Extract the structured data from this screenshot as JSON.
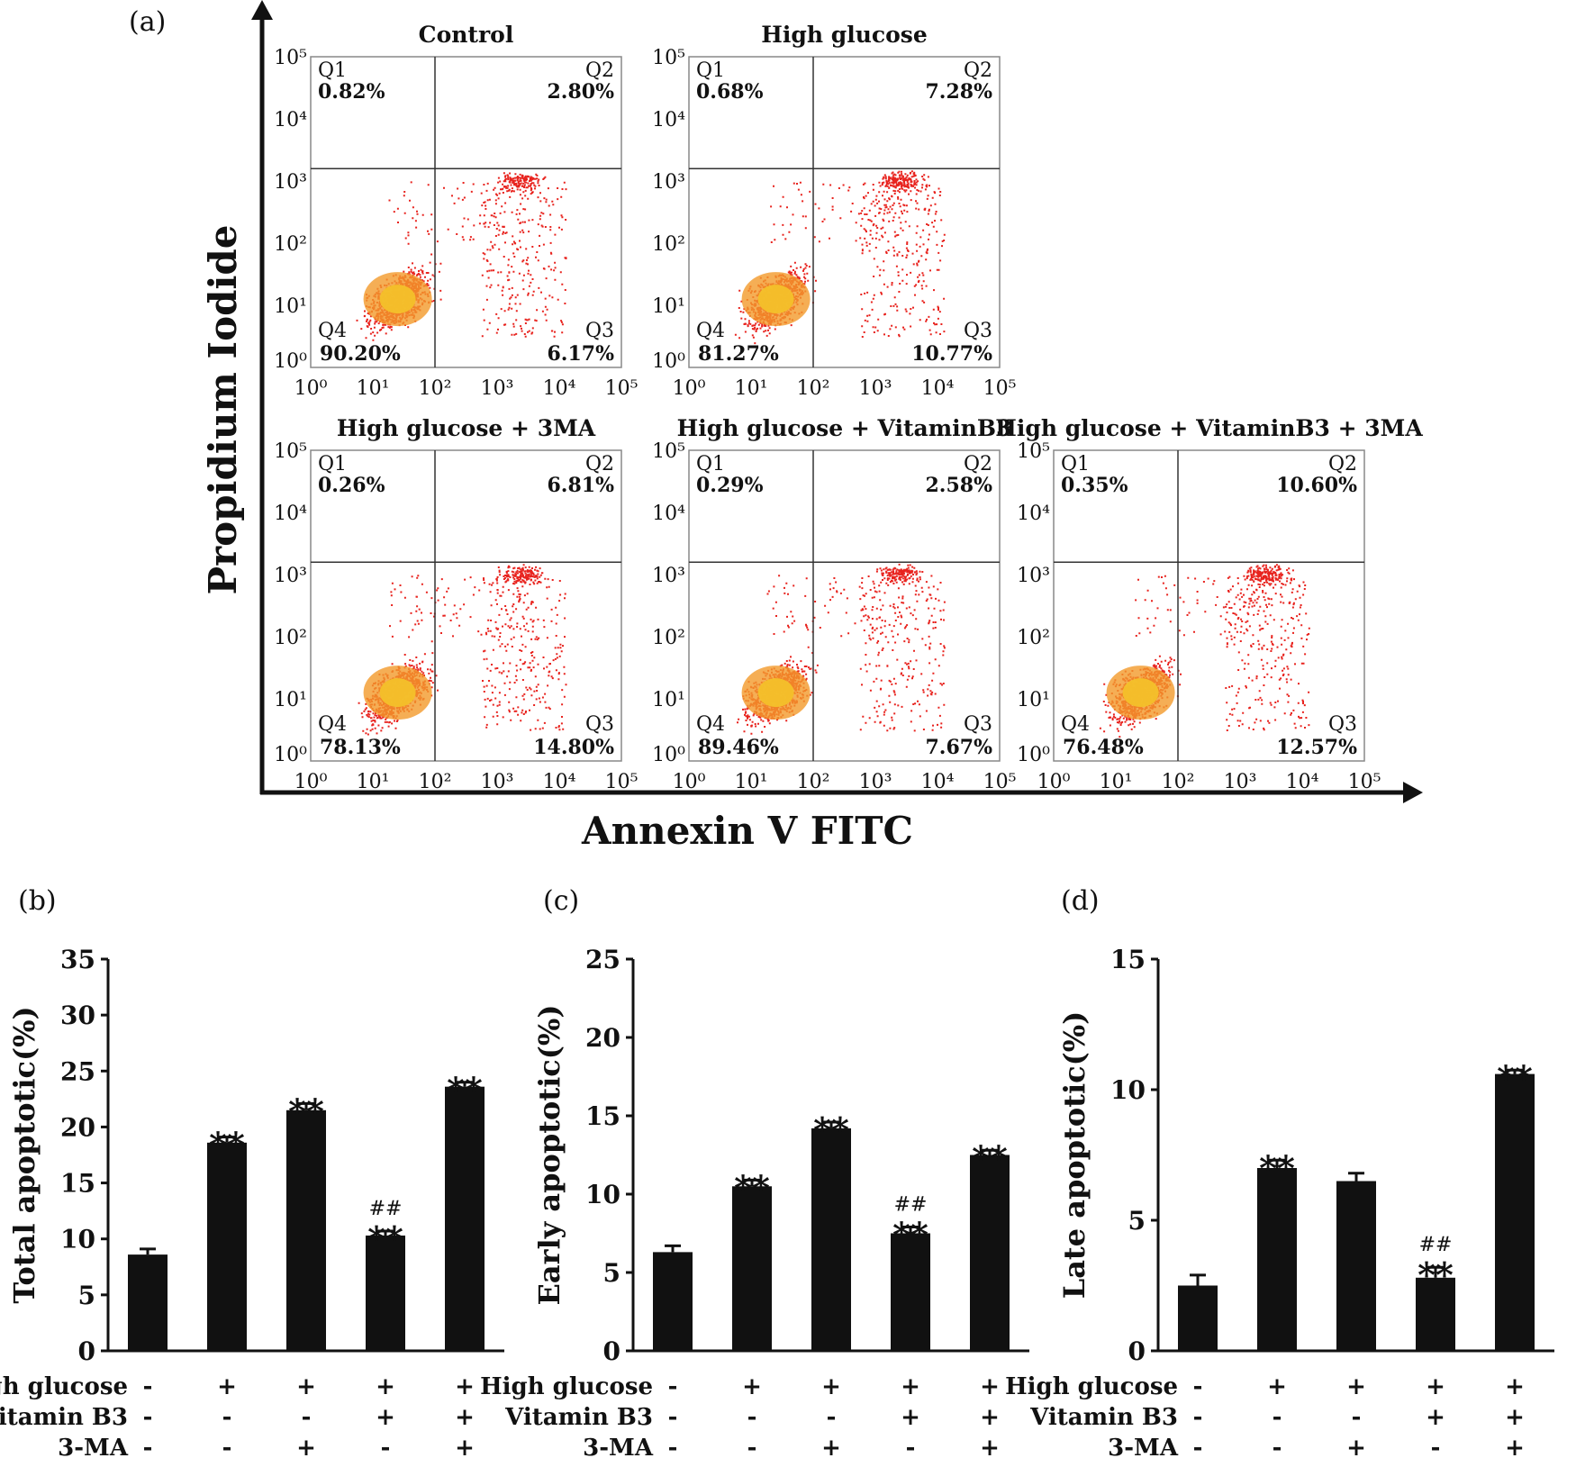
{
  "panel_a": {
    "label": "(a)",
    "ylabel": "Propidium Iodide",
    "xlabel": "Annexin V FITC",
    "tick_labels": [
      "10⁰",
      "10¹",
      "10²",
      "10³",
      "10⁴",
      "10⁵"
    ],
    "plots": [
      {
        "title": "Control",
        "q1": "0.82%",
        "q2": "2.80%",
        "q3": "6.17%",
        "q4": "90.20%"
      },
      {
        "title": "High glucose",
        "q1": "0.68%",
        "q2": "7.28%",
        "q3": "10.77%",
        "q4": "81.27%"
      },
      {
        "title": "High glucose + 3MA",
        "q1": "0.26%",
        "q2": "6.81%",
        "q3": "14.80%",
        "q4": "78.13%"
      },
      {
        "title": "High glucose + VitaminB3",
        "q1": "0.29%",
        "q2": "2.58%",
        "q3": "7.67%",
        "q4": "89.46%"
      },
      {
        "title": "High glucose + VitaminB3 + 3MA",
        "q1": "0.35%",
        "q2": "10.60%",
        "q3": "12.57%",
        "q4": "76.48%"
      }
    ],
    "quadrant_names": [
      "Q1",
      "Q2",
      "Q3",
      "Q4"
    ]
  },
  "chart_data": [
    {
      "type": "bar",
      "label": "(b)",
      "ylabel": "Total apoptotic(%)",
      "ylim": [
        0,
        35
      ],
      "ticks": [
        0,
        5,
        10,
        15,
        20,
        25,
        30,
        35
      ],
      "values": [
        8.6,
        18.6,
        21.5,
        10.3,
        23.6
      ],
      "errors": [
        0.5,
        0.5,
        0.6,
        0.4,
        0.4
      ],
      "annotations": [
        "",
        "**",
        "**",
        "**",
        "**"
      ],
      "hash": [
        "",
        "",
        "",
        "##",
        ""
      ]
    },
    {
      "type": "bar",
      "label": "(c)",
      "ylabel": "Early apoptotic(%)",
      "ylim": [
        0,
        25
      ],
      "ticks": [
        0,
        5,
        10,
        15,
        20,
        25
      ],
      "values": [
        6.3,
        10.5,
        14.2,
        7.5,
        12.5
      ],
      "errors": [
        0.4,
        0.4,
        0.4,
        0.4,
        0.3
      ],
      "annotations": [
        "",
        "**",
        "**",
        "**",
        "**"
      ],
      "hash": [
        "",
        "",
        "",
        "##",
        ""
      ]
    },
    {
      "type": "bar",
      "label": "(d)",
      "ylabel": "Late apoptotic(%)",
      "ylim": [
        0,
        15
      ],
      "ticks": [
        0,
        5,
        10,
        15
      ],
      "values": [
        2.5,
        7.0,
        6.5,
        2.8,
        10.6
      ],
      "errors": [
        0.4,
        0.3,
        0.3,
        0.4,
        0.15
      ],
      "annotations": [
        "",
        "**",
        "",
        "**",
        "**"
      ],
      "hash": [
        "",
        "",
        "",
        "##",
        ""
      ]
    }
  ],
  "conditions": {
    "rows": [
      "High glucose",
      "Vitamin B3",
      "3-MA"
    ],
    "signs": [
      [
        "-",
        "+",
        "+",
        "+",
        "+"
      ],
      [
        "-",
        "-",
        "-",
        "+",
        "+"
      ],
      [
        "-",
        "-",
        "+",
        "-",
        "+"
      ]
    ]
  },
  "colors": {
    "bar": "#111111",
    "dots": "#e8231e",
    "core": "#f3c02a"
  }
}
